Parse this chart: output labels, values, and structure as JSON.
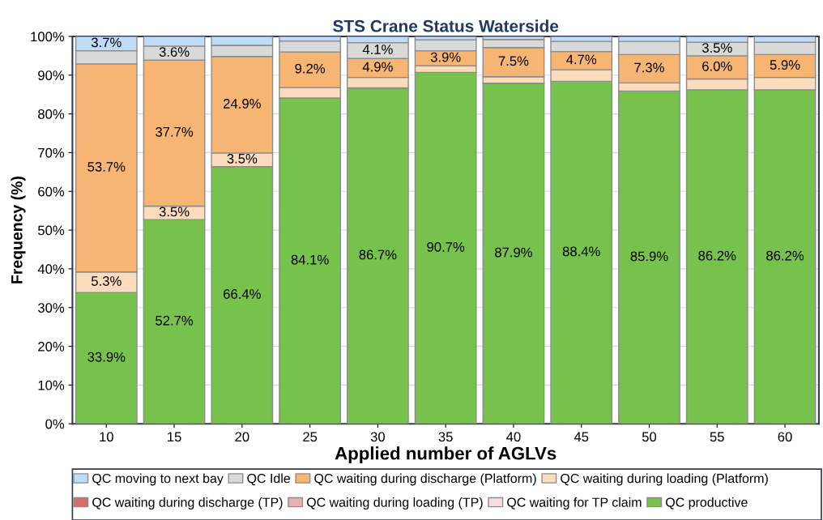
{
  "chart_data": {
    "type": "bar",
    "stacked": true,
    "title": "STS Crane Status Waterside",
    "xlabel": "Applied number of AGLVs",
    "ylabel": "Frequency (%)",
    "categories": [
      "10",
      "15",
      "20",
      "25",
      "30",
      "35",
      "40",
      "45",
      "50",
      "55",
      "60"
    ],
    "ylim": [
      0,
      100
    ],
    "yticks": [
      {
        "value": 0,
        "label": "0%"
      },
      {
        "value": 10,
        "label": "10%"
      },
      {
        "value": 20,
        "label": "20%"
      },
      {
        "value": 30,
        "label": "30%"
      },
      {
        "value": 40,
        "label": "40%"
      },
      {
        "value": 50,
        "label": "50%"
      },
      {
        "value": 60,
        "label": "60%"
      },
      {
        "value": 70,
        "label": "70%"
      },
      {
        "value": 80,
        "label": "80%"
      },
      {
        "value": 90,
        "label": "90%"
      },
      {
        "value": 100,
        "label": "100%"
      }
    ],
    "grid": "y",
    "legend": "bottom",
    "series": [
      {
        "name": "QC productive",
        "color": "#77c14d",
        "values": [
          33.9,
          52.7,
          66.4,
          84.1,
          86.7,
          90.7,
          87.9,
          88.4,
          85.9,
          86.2,
          86.2
        ],
        "value_labels": [
          "33.9%",
          "52.7%",
          "66.4%",
          "84.1%",
          "86.7%",
          "90.7%",
          "87.9%",
          "88.4%",
          "85.9%",
          "86.2%",
          "86.2%"
        ]
      },
      {
        "name": "QC waiting for TP claim",
        "color": "#f6dcdc",
        "values": [
          0,
          0,
          0,
          0,
          0,
          0,
          0,
          0,
          0,
          0,
          0
        ]
      },
      {
        "name": "QC waiting during loading (TP)",
        "color": "#e8b0b0",
        "values": [
          0,
          0,
          0,
          0,
          0,
          0,
          0,
          0,
          0,
          0,
          0
        ]
      },
      {
        "name": "QC waiting during discharge (TP)",
        "color": "#d96b6b",
        "values": [
          0,
          0,
          0,
          0,
          0,
          0,
          0,
          0,
          0,
          0,
          0
        ]
      },
      {
        "name": "QC waiting during loading (Platform)",
        "color": "#fddcbe",
        "values": [
          5.3,
          3.5,
          3.5,
          2.7,
          2.7,
          1.7,
          1.7,
          3.0,
          2.1,
          2.8,
          3.2
        ],
        "value_labels": [
          "5.3%",
          "3.5%",
          "3.5%",
          null,
          null,
          null,
          null,
          null,
          null,
          null,
          null
        ]
      },
      {
        "name": "QC waiting during discharge (Platform)",
        "color": "#f7b574",
        "values": [
          53.7,
          37.7,
          24.9,
          9.2,
          4.9,
          3.9,
          7.5,
          4.7,
          7.3,
          6.0,
          5.9
        ],
        "value_labels": [
          "53.7%",
          "37.7%",
          "24.9%",
          "9.2%",
          "4.9%",
          "3.9%",
          "7.5%",
          "4.7%",
          "7.3%",
          "6.0%",
          "5.9%"
        ]
      },
      {
        "name": "QC Idle",
        "color": "#d9d9d9",
        "values": [
          3.4,
          3.6,
          2.9,
          2.8,
          4.1,
          2.8,
          2.1,
          2.6,
          3.4,
          3.5,
          3.2
        ],
        "value_labels": [
          null,
          "3.6%",
          null,
          null,
          "4.1%",
          null,
          null,
          null,
          null,
          "3.5%",
          null
        ]
      },
      {
        "name": "QC moving to next bay",
        "color": "#bfdcf8",
        "values": [
          3.7,
          2.5,
          2.3,
          1.2,
          1.6,
          0.9,
          0.8,
          1.3,
          1.3,
          1.5,
          1.5
        ],
        "value_labels": [
          "3.7%",
          null,
          null,
          null,
          null,
          null,
          null,
          null,
          null,
          null,
          null
        ]
      }
    ]
  }
}
